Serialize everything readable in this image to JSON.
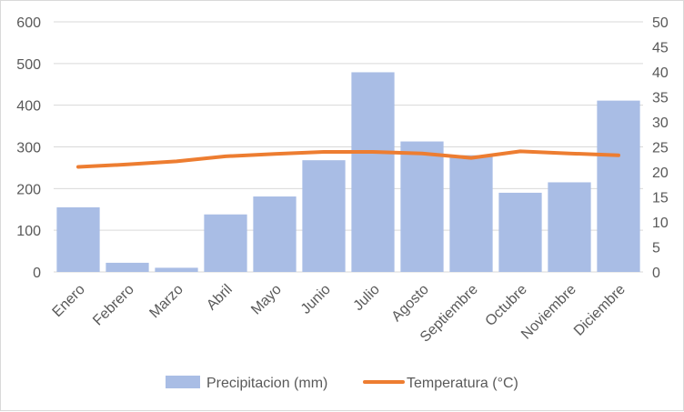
{
  "chart_data": {
    "type": "bar",
    "categories": [
      "Enero",
      "Febrero",
      "Marzo",
      "Abril",
      "Mayo",
      "Junio",
      "Julio",
      "Agosto",
      "Septiembre",
      "Octubre",
      "Noviembre",
      "Diciembre"
    ],
    "series": [
      {
        "name": "Precipitacion (mm)",
        "type": "bar",
        "axis": "left",
        "color": "#a9bde5",
        "values": [
          155,
          22,
          10,
          138,
          181,
          268,
          479,
          313,
          280,
          190,
          215,
          411
        ]
      },
      {
        "name": "Temperatura (°C)",
        "type": "line",
        "axis": "right",
        "color": "#ed7d31",
        "values": [
          21.0,
          21.5,
          22.1,
          23.1,
          23.6,
          24.0,
          24.0,
          23.7,
          22.8,
          24.1,
          23.7,
          23.3
        ]
      }
    ],
    "ylim_left": [
      0,
      600
    ],
    "yticks_left": [
      "0",
      "100",
      "200",
      "300",
      "400",
      "500",
      "600"
    ],
    "ylim_right": [
      0,
      50
    ],
    "yticks_right": [
      "0",
      "5",
      "10",
      "15",
      "20",
      "25",
      "30",
      "35",
      "40",
      "45",
      "50"
    ],
    "grid": true,
    "legend": "bottom"
  }
}
